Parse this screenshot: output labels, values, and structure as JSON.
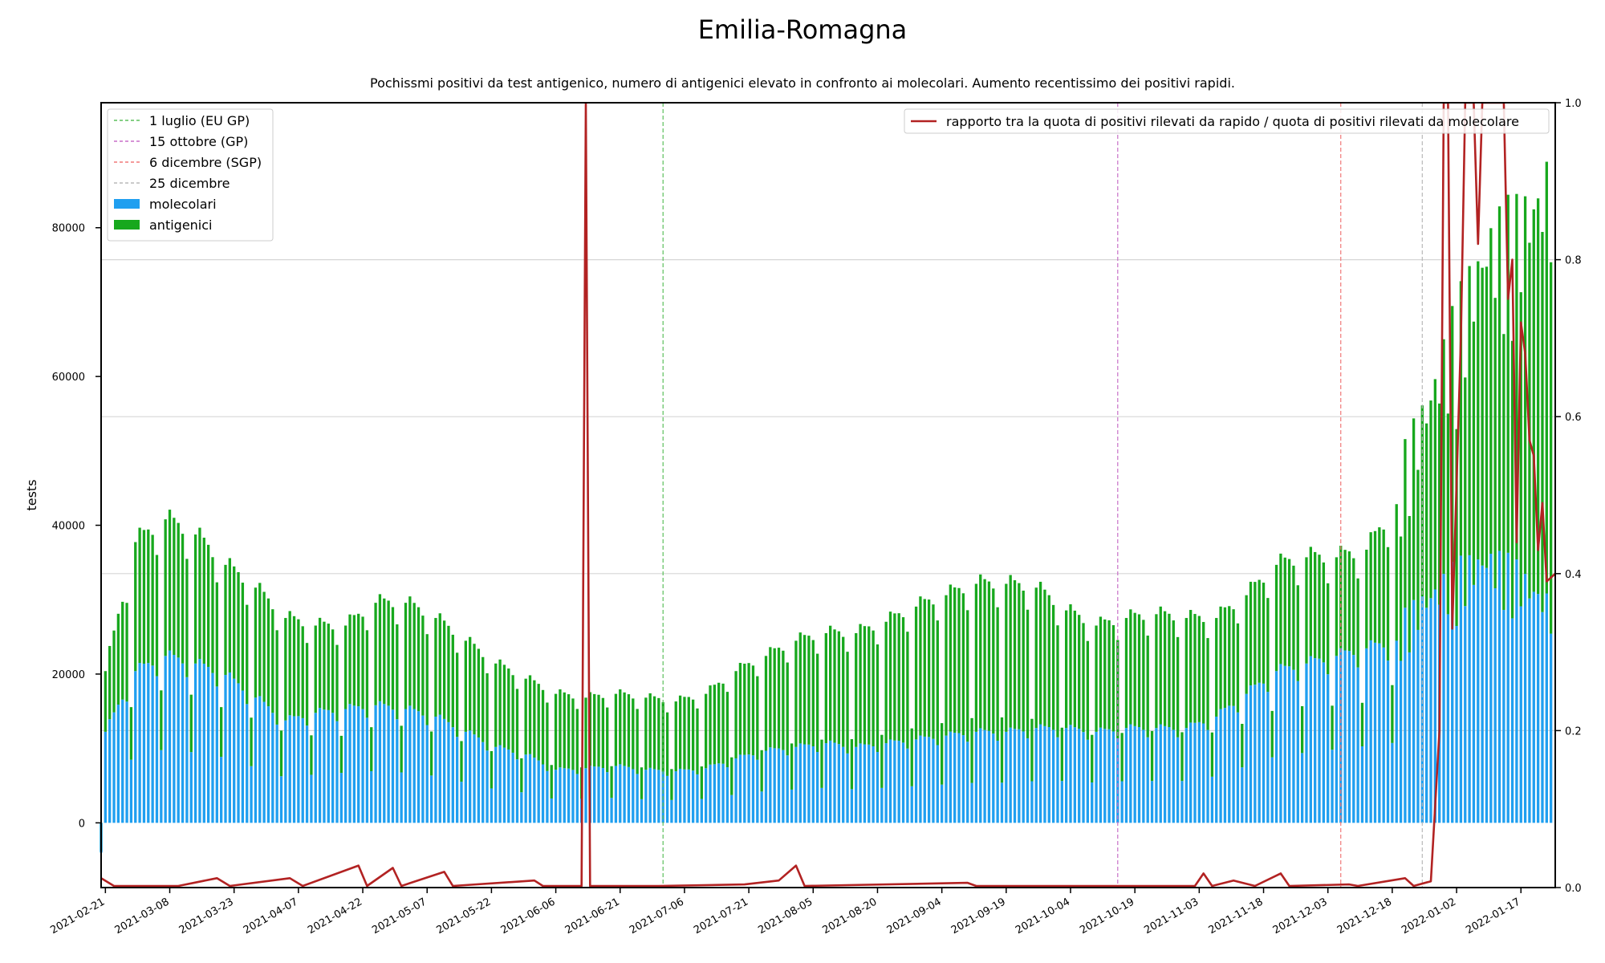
{
  "chart_data": {
    "type": "bar",
    "title": "Emilia-Romagna",
    "subtitle": "Pochissmi positivi da test antigenico, numero di antigenici elevato in confronto ai molecolari. Aumento recentissimo dei positivi rapidi.",
    "ylabel": "tests",
    "ylim": [
      -8700,
      96800
    ],
    "y2lim": [
      0,
      1.0
    ],
    "xlim": [
      "2021-02-20",
      "2022-01-25"
    ],
    "grid": true,
    "yticks": [
      0,
      20000,
      40000,
      60000,
      80000
    ],
    "y2ticks": [
      0.0,
      0.2,
      0.4,
      0.6,
      0.8,
      1.0
    ],
    "xticks": [
      "2021-02-21",
      "2021-03-08",
      "2021-03-23",
      "2021-04-07",
      "2021-04-22",
      "2021-05-07",
      "2021-05-22",
      "2021-06-06",
      "2021-06-21",
      "2021-07-06",
      "2021-07-21",
      "2021-08-05",
      "2021-08-20",
      "2021-09-04",
      "2021-09-19",
      "2021-10-04",
      "2021-10-19",
      "2021-11-03",
      "2021-11-18",
      "2021-12-03",
      "2021-12-18",
      "2022-01-02",
      "2022-01-17"
    ],
    "legend_left": {
      "position": "upper-left",
      "items": [
        {
          "label": "1 luglio (EU GP)",
          "style": "dashed",
          "color": "#5bbf5b"
        },
        {
          "label": "15 ottobre (GP)",
          "style": "dashed",
          "color": "#c86fc8"
        },
        {
          "label": "6 dicembre (SGP)",
          "style": "dashed",
          "color": "#f07878"
        },
        {
          "label": "25 dicembre",
          "style": "dashed",
          "color": "#b8b8b8"
        },
        {
          "label": "molecolari",
          "style": "patch",
          "color": "#1f9ff0"
        },
        {
          "label": "antigenici",
          "style": "patch",
          "color": "#17a81d"
        }
      ]
    },
    "legend_right": {
      "position": "upper-right",
      "label": "rapporto tra la quota di positivi rilevati da rapido / quota di positivi rilevati da molecolare",
      "color": "#b22222"
    },
    "vlines": [
      {
        "date": "2021-07-01",
        "color": "#5bbf5b"
      },
      {
        "date": "2021-10-15",
        "color": "#c86fc8"
      },
      {
        "date": "2021-12-06",
        "color": "#f07878"
      },
      {
        "date": "2021-12-25",
        "color": "#b8b8b8"
      }
    ],
    "series_points": {
      "molecolari": [
        [
          "2021-02-20",
          -4000
        ],
        [
          "2021-02-21",
          12000
        ],
        [
          "2021-02-28",
          20000
        ],
        [
          "2021-03-07",
          22000
        ],
        [
          "2021-03-14",
          21000
        ],
        [
          "2021-03-21",
          19500
        ],
        [
          "2021-03-28",
          16500
        ],
        [
          "2021-04-04",
          13500
        ],
        [
          "2021-04-11",
          14500
        ],
        [
          "2021-04-18",
          15000
        ],
        [
          "2021-04-25",
          15500
        ],
        [
          "2021-05-02",
          15000
        ],
        [
          "2021-05-09",
          14000
        ],
        [
          "2021-05-16",
          12000
        ],
        [
          "2021-05-23",
          10000
        ],
        [
          "2021-05-30",
          9000
        ],
        [
          "2021-06-06",
          7000
        ],
        [
          "2021-06-13",
          7200
        ],
        [
          "2021-06-20",
          7500
        ],
        [
          "2021-06-27",
          7000
        ],
        [
          "2021-07-04",
          6800
        ],
        [
          "2021-07-11",
          7200
        ],
        [
          "2021-07-18",
          8500
        ],
        [
          "2021-07-25",
          9500
        ],
        [
          "2021-08-01",
          10000
        ],
        [
          "2021-08-08",
          10500
        ],
        [
          "2021-08-15",
          10000
        ],
        [
          "2021-08-22",
          10500
        ],
        [
          "2021-08-29",
          11000
        ],
        [
          "2021-09-05",
          11500
        ],
        [
          "2021-09-12",
          12000
        ],
        [
          "2021-09-19",
          12000
        ],
        [
          "2021-09-26",
          12500
        ],
        [
          "2021-10-03",
          12500
        ],
        [
          "2021-10-10",
          12000
        ],
        [
          "2021-10-17",
          12500
        ],
        [
          "2021-10-24",
          12500
        ],
        [
          "2021-10-31",
          12500
        ],
        [
          "2021-11-07",
          14000
        ],
        [
          "2021-11-14",
          17000
        ],
        [
          "2021-11-21",
          20000
        ],
        [
          "2021-11-28",
          21000
        ],
        [
          "2021-12-05",
          22000
        ],
        [
          "2021-12-12",
          23000
        ],
        [
          "2021-12-19",
          24000
        ],
        [
          "2021-12-26",
          28000
        ],
        [
          "2022-01-02",
          31000
        ],
        [
          "2022-01-09",
          33000
        ],
        [
          "2022-01-16",
          31000
        ],
        [
          "2022-01-24",
          27000
        ]
      ],
      "totale": [
        [
          "2021-02-20",
          -3800
        ],
        [
          "2021-02-21",
          20000
        ],
        [
          "2021-02-28",
          37000
        ],
        [
          "2021-03-07",
          40000
        ],
        [
          "2021-03-14",
          38000
        ],
        [
          "2021-03-21",
          34000
        ],
        [
          "2021-03-28",
          31000
        ],
        [
          "2021-04-04",
          27000
        ],
        [
          "2021-04-11",
          26000
        ],
        [
          "2021-04-18",
          26000
        ],
        [
          "2021-04-25",
          29000
        ],
        [
          "2021-05-02",
          29000
        ],
        [
          "2021-05-09",
          27000
        ],
        [
          "2021-05-16",
          24000
        ],
        [
          "2021-05-23",
          21000
        ],
        [
          "2021-05-30",
          19000
        ],
        [
          "2021-06-06",
          17000
        ],
        [
          "2021-06-13",
          16500
        ],
        [
          "2021-06-20",
          17000
        ],
        [
          "2021-06-27",
          16500
        ],
        [
          "2021-07-04",
          16000
        ],
        [
          "2021-07-11",
          17000
        ],
        [
          "2021-07-18",
          20000
        ],
        [
          "2021-07-25",
          22000
        ],
        [
          "2021-08-01",
          24000
        ],
        [
          "2021-08-08",
          25000
        ],
        [
          "2021-08-15",
          25000
        ],
        [
          "2021-08-22",
          26500
        ],
        [
          "2021-08-29",
          28500
        ],
        [
          "2021-09-05",
          30000
        ],
        [
          "2021-09-12",
          31500
        ],
        [
          "2021-09-19",
          31500
        ],
        [
          "2021-09-26",
          31000
        ],
        [
          "2021-10-03",
          28000
        ],
        [
          "2021-10-10",
          26000
        ],
        [
          "2021-10-17",
          27000
        ],
        [
          "2021-10-24",
          27500
        ],
        [
          "2021-10-31",
          27000
        ],
        [
          "2021-11-07",
          27000
        ],
        [
          "2021-11-14",
          30000
        ],
        [
          "2021-11-21",
          34000
        ],
        [
          "2021-11-28",
          35000
        ],
        [
          "2021-12-05",
          35000
        ],
        [
          "2021-12-12",
          36000
        ],
        [
          "2021-12-19",
          42000
        ],
        [
          "2021-12-26",
          52000
        ],
        [
          "2022-01-02",
          62000
        ],
        [
          "2022-01-09",
          72000
        ],
        [
          "2022-01-16",
          74000
        ],
        [
          "2022-01-24",
          80000
        ]
      ]
    },
    "ratio_points": [
      [
        "2021-02-20",
        0.012
      ],
      [
        "2021-02-23",
        0.002
      ],
      [
        "2021-03-01",
        0.002
      ],
      [
        "2021-03-10",
        0.002
      ],
      [
        "2021-03-19",
        0.012
      ],
      [
        "2021-03-22",
        0.002
      ],
      [
        "2021-04-05",
        0.012
      ],
      [
        "2021-04-08",
        0.002
      ],
      [
        "2021-04-21",
        0.028
      ],
      [
        "2021-04-23",
        0.002
      ],
      [
        "2021-04-29",
        0.025
      ],
      [
        "2021-05-01",
        0.002
      ],
      [
        "2021-05-11",
        0.02
      ],
      [
        "2021-05-13",
        0.002
      ],
      [
        "2021-06-01",
        0.009
      ],
      [
        "2021-06-03",
        0.002
      ],
      [
        "2021-06-12",
        0.002
      ],
      [
        "2021-06-13",
        1.0
      ],
      [
        "2021-06-14",
        0.002
      ],
      [
        "2021-06-30",
        0.002
      ],
      [
        "2021-07-20",
        0.004
      ],
      [
        "2021-07-28",
        0.009
      ],
      [
        "2021-08-01",
        0.028
      ],
      [
        "2021-08-03",
        0.002
      ],
      [
        "2021-09-10",
        0.006
      ],
      [
        "2021-09-12",
        0.002
      ],
      [
        "2021-10-15",
        0.002
      ],
      [
        "2021-11-02",
        0.002
      ],
      [
        "2021-11-04",
        0.018
      ],
      [
        "2021-11-06",
        0.002
      ],
      [
        "2021-11-11",
        0.009
      ],
      [
        "2021-11-16",
        0.002
      ],
      [
        "2021-11-22",
        0.018
      ],
      [
        "2021-11-24",
        0.002
      ],
      [
        "2021-12-08",
        0.004
      ],
      [
        "2021-12-10",
        0.002
      ],
      [
        "2021-12-21",
        0.012
      ],
      [
        "2021-12-23",
        0.002
      ],
      [
        "2021-12-27",
        0.008
      ],
      [
        "2021-12-29",
        0.2
      ],
      [
        "2021-12-30",
        1.0
      ],
      [
        "2021-12-31",
        1.0
      ],
      [
        "2022-01-01",
        0.33
      ],
      [
        "2022-01-03",
        0.7
      ],
      [
        "2022-01-04",
        1.0
      ],
      [
        "2022-01-06",
        1.0
      ],
      [
        "2022-01-07",
        0.82
      ],
      [
        "2022-01-08",
        1.0
      ],
      [
        "2022-01-13",
        1.0
      ],
      [
        "2022-01-14",
        0.75
      ],
      [
        "2022-01-15",
        0.8
      ],
      [
        "2022-01-16",
        0.44
      ],
      [
        "2022-01-17",
        0.72
      ],
      [
        "2022-01-18",
        0.68
      ],
      [
        "2022-01-19",
        0.57
      ],
      [
        "2022-01-20",
        0.55
      ],
      [
        "2022-01-21",
        0.43
      ],
      [
        "2022-01-22",
        0.49
      ],
      [
        "2022-01-23",
        0.39
      ],
      [
        "2022-01-25",
        0.4
      ]
    ]
  }
}
